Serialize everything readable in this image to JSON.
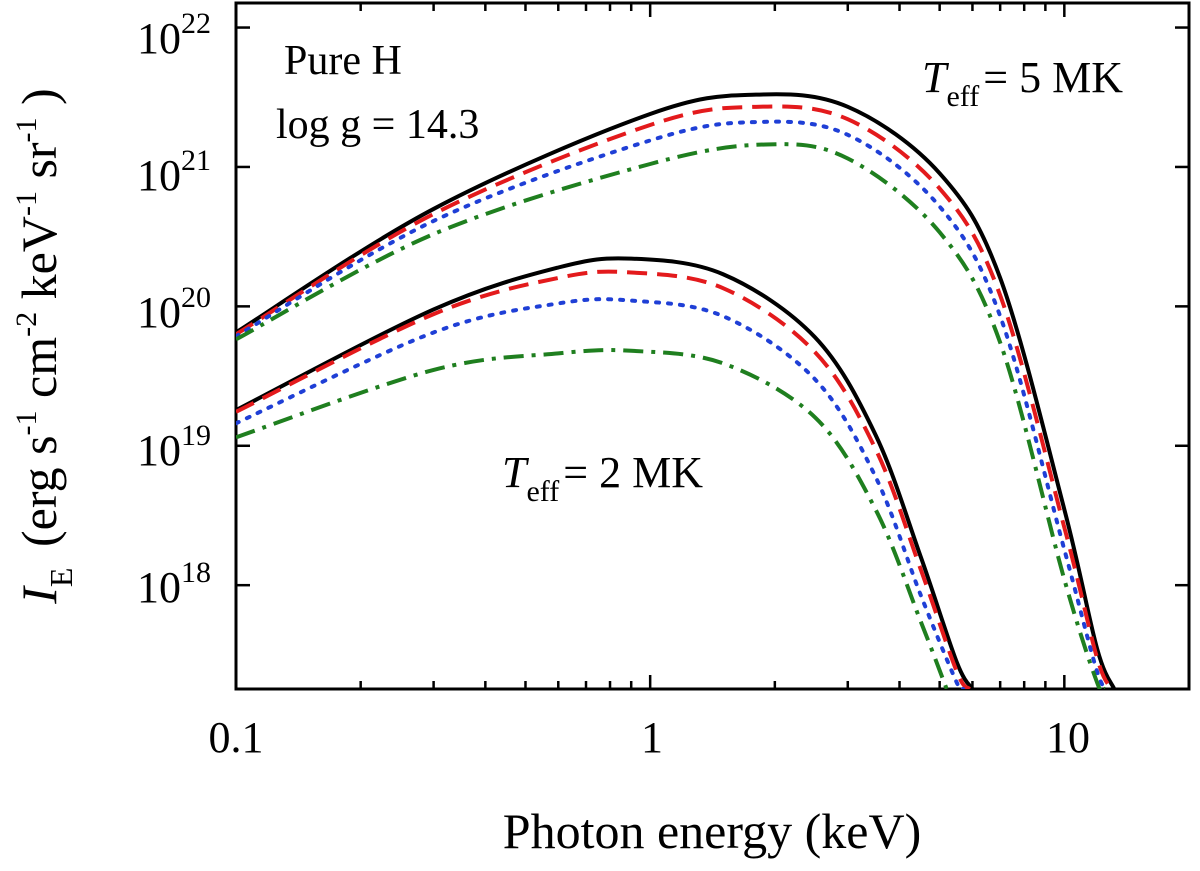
{
  "chart_data": {
    "type": "line",
    "xscale": "log",
    "yscale": "log",
    "xlabel": "Photon energy (keV)",
    "ylabel_symbol": "I",
    "ylabel_subscript": "E",
    "ylabel_units": {
      "open": "(erg s",
      "s_exp": "-1",
      "cm": "cm",
      "cm_exp": "-2",
      "kev": "keV",
      "kev_exp": "-1",
      "sr": "sr",
      "sr_exp": "-1",
      "close": ")"
    },
    "xlim": [
      0.1,
      20
    ],
    "ylim": [
      1.8e+17,
      1.5e+22
    ],
    "x_ticks": [
      {
        "value": 0.1,
        "label": "0.1"
      },
      {
        "value": 1,
        "label": "1"
      },
      {
        "value": 10,
        "label": "10"
      }
    ],
    "y_ticks": [
      {
        "value": 1e+18,
        "base": "10",
        "exp": "18"
      },
      {
        "value": 1e+19,
        "base": "10",
        "exp": "19"
      },
      {
        "value": 1e+20,
        "base": "10",
        "exp": "20"
      },
      {
        "value": 1e+21,
        "base": "10",
        "exp": "21"
      },
      {
        "value": 1e+22,
        "base": "10",
        "exp": "22"
      }
    ],
    "annotations": {
      "model_line1": "Pure H",
      "model_line2": "log g = 14.3",
      "teff_symbol": "T",
      "teff_sub": "eff",
      "teff_hot": "= 5 MK",
      "teff_cool": "= 2 MK"
    },
    "series": [
      {
        "name": "5 MK solid",
        "group": "5 MK",
        "color": "#000000",
        "style": "solid",
        "x": [
          0.1,
          0.3,
          1,
          1.8,
          3,
          5,
          7,
          10,
          12,
          13.2
        ],
        "y": [
          6.5e+19,
          5e+20,
          2.4e+21,
          3.3e+21,
          2.7e+21,
          9e+20,
          1.6e+20,
          3.5e+18,
          3.5e+17,
          1.8e+17
        ]
      },
      {
        "name": "5 MK dashed",
        "group": "5 MK",
        "color": "#e31a1c",
        "style": "dashed",
        "x": [
          0.1,
          0.3,
          1,
          1.8,
          3,
          5,
          7,
          10,
          12,
          13.0
        ],
        "y": [
          6.3e+19,
          4.6e+20,
          2e+21,
          2.7e+21,
          2.2e+21,
          7e+20,
          1.2e+20,
          2.6e+18,
          3e+17,
          1.8e+17
        ]
      },
      {
        "name": "5 MK dotted",
        "group": "5 MK",
        "color": "#1f3fd6",
        "style": "dotted",
        "x": [
          0.1,
          0.3,
          1,
          1.8,
          3,
          5,
          7,
          10,
          12,
          12.8
        ],
        "y": [
          6.1e+19,
          4.1e+20,
          1.55e+21,
          2.1e+21,
          1.7e+21,
          5.2e+20,
          8.5e+19,
          1.8e+18,
          2.4e+17,
          1.8e+17
        ]
      },
      {
        "name": "5 MK dash-dot",
        "group": "5 MK",
        "color": "#1f7f1f",
        "style": "dashdot",
        "x": [
          0.1,
          0.3,
          1,
          1.9,
          3,
          5,
          7,
          10,
          12,
          12.5
        ],
        "y": [
          5.8e+19,
          3.3e+20,
          1.05e+21,
          1.45e+21,
          1.15e+21,
          3.4e+20,
          5.5e+19,
          1.1e+18,
          2e+17,
          1.8e+17
        ]
      },
      {
        "name": "2 MK solid",
        "group": "2 MK",
        "color": "#000000",
        "style": "solid",
        "x": [
          0.1,
          0.3,
          0.6,
          0.9,
          1.5,
          2.5,
          3.5,
          4.5,
          5.5,
          6.0
        ],
        "y": [
          1.8e+19,
          9.5e+19,
          1.9e+20,
          2.2e+20,
          1.7e+20,
          6e+19,
          1.2e+19,
          1.6e+18,
          2.8e+17,
          1.8e+17
        ]
      },
      {
        "name": "2 MK dashed",
        "group": "2 MK",
        "color": "#e31a1c",
        "style": "dashed",
        "x": [
          0.1,
          0.3,
          0.6,
          0.9,
          1.5,
          2.5,
          3.5,
          4.5,
          5.5,
          5.9
        ],
        "y": [
          1.75e+19,
          8.8e+19,
          1.6e+20,
          1.75e+20,
          1.35e+20,
          4.7e+19,
          9.5e+18,
          1.3e+18,
          2.4e+17,
          1.8e+17
        ]
      },
      {
        "name": "2 MK dotted",
        "group": "2 MK",
        "color": "#1f3fd6",
        "style": "dotted",
        "x": [
          0.1,
          0.3,
          0.6,
          0.9,
          1.5,
          2.5,
          3.5,
          4.5,
          5.5,
          5.7
        ],
        "y": [
          1.45e+19,
          6.5e+19,
          1.05e+20,
          1.1e+20,
          8.5e+19,
          3e+19,
          6e+18,
          8.5e+17,
          2e+17,
          1.8e+17
        ]
      },
      {
        "name": "2 MK dash-dot",
        "group": "2 MK",
        "color": "#1f7f1f",
        "style": "dashdot",
        "x": [
          0.1,
          0.3,
          0.6,
          0.9,
          1.5,
          2.5,
          3.5,
          4.5,
          5.2
        ],
        "y": [
          1.15e+19,
          3.5e+19,
          4.6e+19,
          4.8e+19,
          3.9e+19,
          1.6e+19,
          3.5e+18,
          5.5e+17,
          1.8e+17
        ]
      }
    ]
  }
}
